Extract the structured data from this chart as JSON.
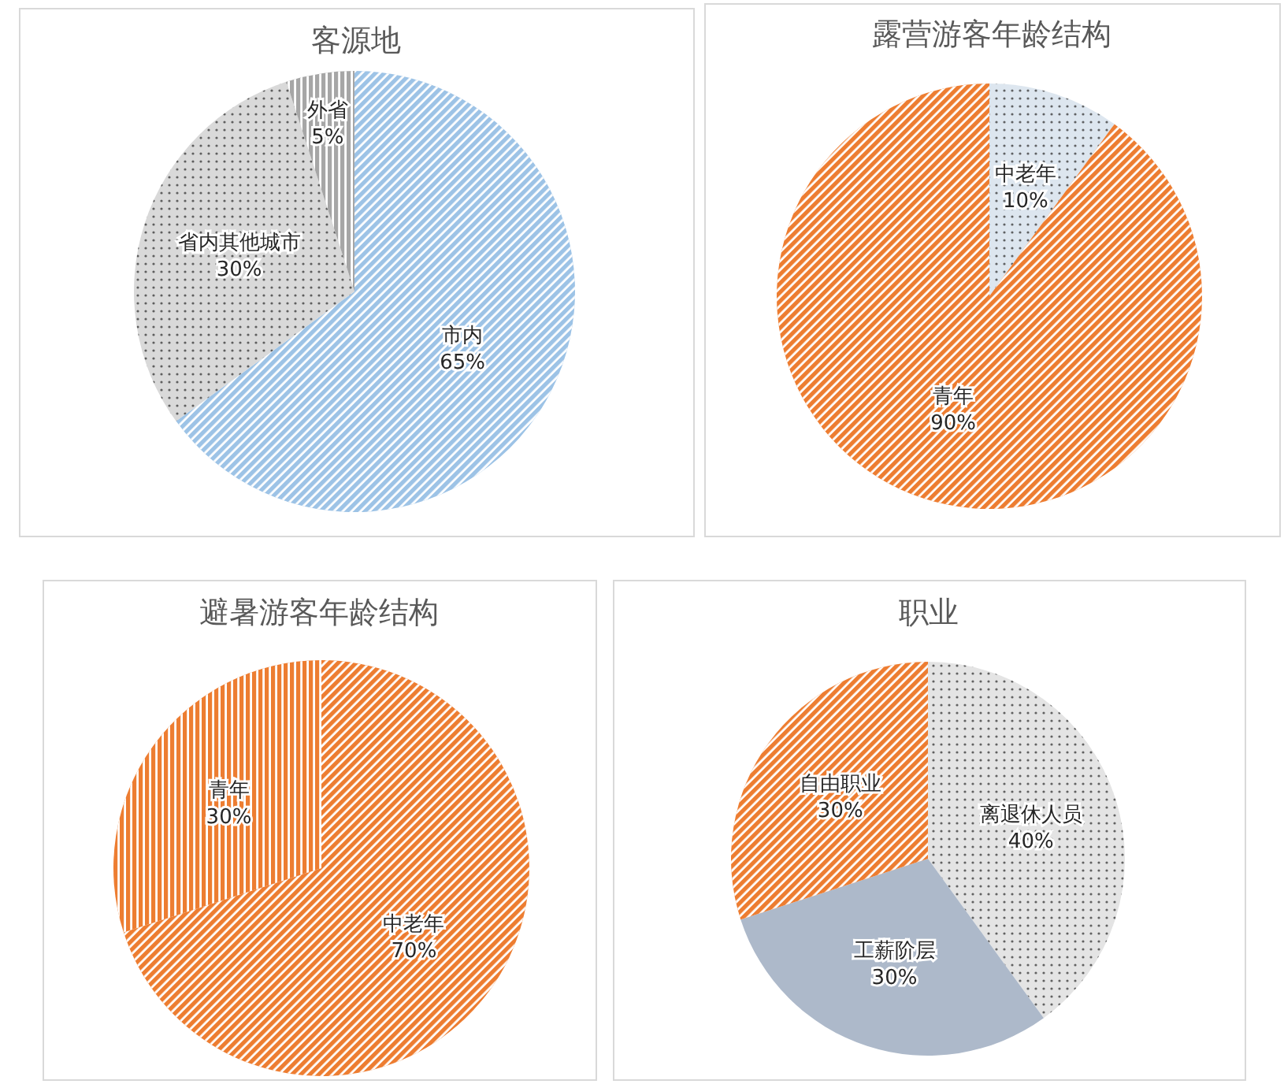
{
  "chart_data": [
    {
      "type": "pie",
      "title": "客源地",
      "categories": [
        "市内",
        "省内其他城市",
        "外省"
      ],
      "values": [
        65,
        30,
        5
      ],
      "value_labels": [
        "65%",
        "30%",
        "5%"
      ],
      "colors": [
        "#9dc3e6",
        "#d9d9d9",
        "#a6a6a6"
      ]
    },
    {
      "type": "pie",
      "title": "露营游客年龄结构",
      "categories": [
        "中老年",
        "青年"
      ],
      "values": [
        10,
        90
      ],
      "value_labels": [
        "10%",
        "90%"
      ],
      "colors": [
        "#dde6ef",
        "#ed7d31"
      ]
    },
    {
      "type": "pie",
      "title": "避暑游客年龄结构",
      "categories": [
        "中老年",
        "青年"
      ],
      "values": [
        70,
        30
      ],
      "value_labels": [
        "70%",
        "30%"
      ],
      "colors": [
        "#ed7d31",
        "#ed7d31"
      ]
    },
    {
      "type": "pie",
      "title": "职业",
      "categories": [
        "离退休人员",
        "工薪阶层",
        "自由职业"
      ],
      "values": [
        40,
        30,
        30
      ],
      "value_labels": [
        "40%",
        "30%",
        "30%"
      ],
      "colors": [
        "#e4e4e4",
        "#adb9ca",
        "#ed7d31"
      ]
    }
  ]
}
